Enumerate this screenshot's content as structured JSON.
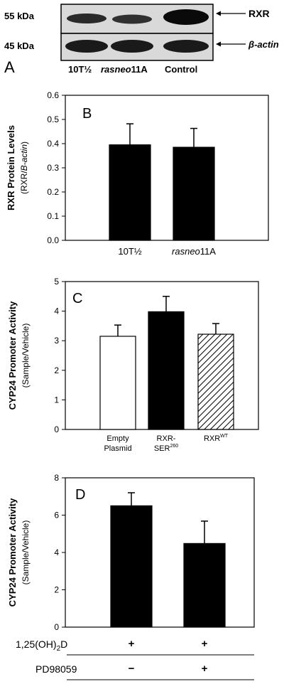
{
  "blot": {
    "panel_letter": "A",
    "markers": [
      "55 kDa",
      "45 kDa"
    ],
    "bands": [
      "RXR",
      "β-actin"
    ],
    "lanes": [
      {
        "pre": "10T½",
        "ital": "",
        "post": ""
      },
      {
        "pre": "",
        "ital": "rasneo",
        "post": "11A"
      },
      {
        "pre": "Control",
        "ital": "",
        "post": ""
      }
    ]
  },
  "chart_data": [
    {
      "type": "bar",
      "panel": "B",
      "ylabel_line1": "RXR Protein Levels",
      "ylabel_line2_pre": "(RXR/",
      "ylabel_line2_ital": "B-actin",
      "ylabel_line2_post": ")",
      "ylim": [
        0,
        0.6
      ],
      "yticks": [
        "0.0",
        "0.1",
        "0.2",
        "0.3",
        "0.4",
        "0.5",
        "0.6"
      ],
      "categories": [
        {
          "pre": "10T½",
          "ital": "",
          "post": ""
        },
        {
          "pre": "",
          "ital": "rasneo",
          "post": "11A"
        }
      ],
      "values": [
        0.395,
        0.385
      ],
      "errors": [
        0.087,
        0.078
      ],
      "fills": [
        "solid",
        "solid"
      ]
    },
    {
      "type": "bar",
      "panel": "C",
      "ylabel_line1": "CYP24 Promoter Activity",
      "ylabel_line2": "(Sample/Vehicle)",
      "ylim": [
        0,
        5
      ],
      "yticks": [
        "0",
        "1",
        "2",
        "3",
        "4",
        "5"
      ],
      "categories": [
        {
          "line1": "Empty",
          "line2": "Plasmid"
        },
        {
          "line1": "RXR-",
          "line2": "SER",
          "sup2": "260"
        },
        {
          "line1": "RXR",
          "sup1": "WT"
        }
      ],
      "values": [
        3.15,
        3.98,
        3.22
      ],
      "errors": [
        0.38,
        0.52,
        0.36
      ],
      "fills": [
        "white",
        "solid",
        "hatched"
      ]
    },
    {
      "type": "bar",
      "panel": "D",
      "ylabel_line1": "CYP24 Promoter Activity",
      "ylabel_line2": "(Sample/Vehicle)",
      "ylim": [
        0,
        8
      ],
      "yticks": [
        "0",
        "2",
        "4",
        "6",
        "8"
      ],
      "values": [
        6.5,
        4.48
      ],
      "errors": [
        0.7,
        1.2
      ],
      "fills": [
        "solid",
        "solid"
      ],
      "treatments": [
        {
          "label_pre": "1,25(OH)",
          "label_sub": "2",
          "label_post": "D",
          "values": [
            "+",
            "+"
          ]
        },
        {
          "label_pre": "PD98059",
          "values": [
            "−",
            "+"
          ]
        }
      ]
    }
  ],
  "colors": {
    "bar": "#000000",
    "axis": "#000000",
    "band_bg": "#d8d8d8",
    "band_dark": "#1a1a1a"
  }
}
